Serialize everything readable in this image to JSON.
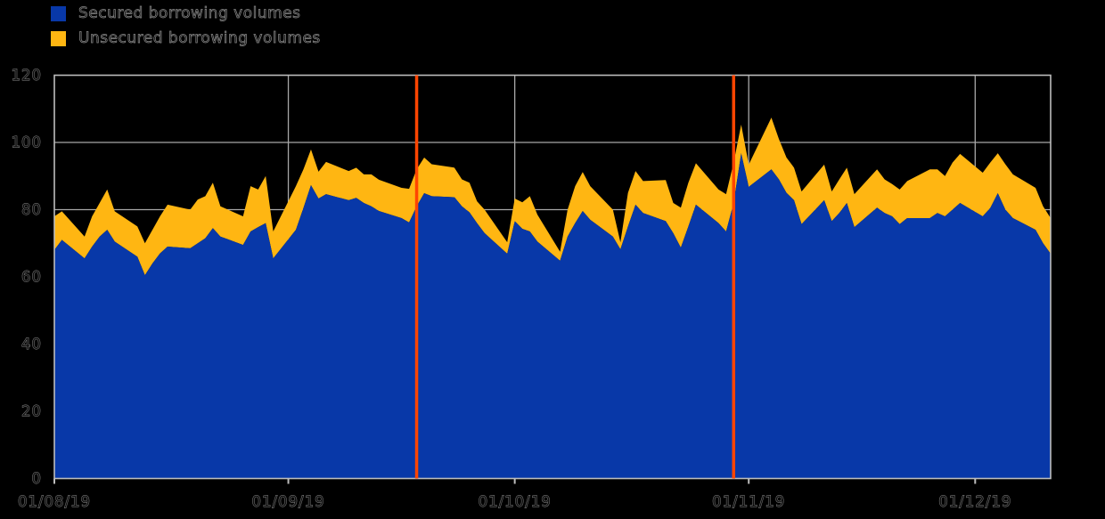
{
  "colors": {
    "background": "#000000",
    "grid": "#A8A8A8",
    "frame": "#BDBDBD",
    "event_line": "#FF4500",
    "secured_blue": "#0838A8",
    "unsecured_gold": "#FFB612",
    "text_fill": "#0E0E0E",
    "text_halo": "#8A8A8A"
  },
  "chart_data": {
    "type": "area",
    "stacked": true,
    "stacking": "incremental",
    "grid": true,
    "legend_position": "top-left",
    "ylim": [
      0,
      120
    ],
    "yticks": [
      {
        "value": 0,
        "label": "0"
      },
      {
        "value": 20,
        "label": "20"
      },
      {
        "value": 40,
        "label": "40"
      },
      {
        "value": 60,
        "label": "60"
      },
      {
        "value": 80,
        "label": "80"
      },
      {
        "value": 100,
        "label": "100"
      },
      {
        "value": 120,
        "label": "120"
      }
    ],
    "xticks": [
      {
        "date": "2019-08-01",
        "label": "01/08/19"
      },
      {
        "date": "2019-09-01",
        "label": "01/09/19"
      },
      {
        "date": "2019-10-01",
        "label": "01/10/19"
      },
      {
        "date": "2019-11-01",
        "label": "01/11/19"
      },
      {
        "date": "2019-12-01",
        "label": "01/12/19"
      }
    ],
    "event_line_color": "#FF4500",
    "event_lines": [
      {
        "date": "2019-09-18"
      },
      {
        "date": "2019-10-30"
      }
    ],
    "x_dates": [
      "2019-08-01",
      "2019-08-02",
      "2019-08-05",
      "2019-08-06",
      "2019-08-07",
      "2019-08-08",
      "2019-08-09",
      "2019-08-12",
      "2019-08-13",
      "2019-08-14",
      "2019-08-15",
      "2019-08-16",
      "2019-08-19",
      "2019-08-20",
      "2019-08-21",
      "2019-08-22",
      "2019-08-23",
      "2019-08-26",
      "2019-08-27",
      "2019-08-28",
      "2019-08-29",
      "2019-08-30",
      "2019-09-02",
      "2019-09-03",
      "2019-09-04",
      "2019-09-05",
      "2019-09-06",
      "2019-09-09",
      "2019-09-10",
      "2019-09-11",
      "2019-09-12",
      "2019-09-13",
      "2019-09-16",
      "2019-09-17",
      "2019-09-18",
      "2019-09-19",
      "2019-09-20",
      "2019-09-23",
      "2019-09-24",
      "2019-09-25",
      "2019-09-26",
      "2019-09-27",
      "2019-09-30",
      "2019-10-01",
      "2019-10-02",
      "2019-10-03",
      "2019-10-04",
      "2019-10-07",
      "2019-10-08",
      "2019-10-09",
      "2019-10-10",
      "2019-10-11",
      "2019-10-14",
      "2019-10-15",
      "2019-10-16",
      "2019-10-17",
      "2019-10-18",
      "2019-10-21",
      "2019-10-22",
      "2019-10-23",
      "2019-10-24",
      "2019-10-25",
      "2019-10-28",
      "2019-10-29",
      "2019-10-30",
      "2019-10-31",
      "2019-11-01",
      "2019-11-04",
      "2019-11-05",
      "2019-11-06",
      "2019-11-07",
      "2019-11-08",
      "2019-11-11",
      "2019-11-12",
      "2019-11-13",
      "2019-11-14",
      "2019-11-15",
      "2019-11-18",
      "2019-11-19",
      "2019-11-20",
      "2019-11-21",
      "2019-11-22",
      "2019-11-25",
      "2019-11-26",
      "2019-11-27",
      "2019-11-28",
      "2019-11-29",
      "2019-12-02",
      "2019-12-03",
      "2019-12-04",
      "2019-12-05",
      "2019-12-06",
      "2019-12-09",
      "2019-12-10",
      "2019-12-11"
    ],
    "series": [
      {
        "name": "Secured borrowing volumes",
        "color": "#0838A8",
        "values": [
          68,
          71,
          65.5,
          69,
          72,
          74,
          70.5,
          66,
          60.5,
          64,
          67,
          69,
          68.5,
          70,
          71.5,
          74.5,
          72,
          69.5,
          73.5,
          74.8,
          76,
          65.5,
          74,
          80.5,
          87.3,
          83.3,
          84.6,
          82.8,
          83.5,
          82,
          81,
          79.6,
          77.5,
          76.2,
          81,
          84.9,
          84,
          83.7,
          81,
          79.2,
          76,
          73,
          66.9,
          76.6,
          74.3,
          73.5,
          70.5,
          64.8,
          72,
          76,
          79.6,
          77,
          72,
          68.2,
          75,
          81.5,
          79,
          76.6,
          73,
          68.7,
          75,
          81.5,
          76,
          73.5,
          82,
          96.8,
          86.8,
          92,
          89,
          85,
          82.8,
          75.7,
          82.8,
          76.6,
          79,
          82,
          74.8,
          80.6,
          79,
          78,
          75.7,
          77.5,
          77.5,
          79,
          78,
          80,
          82,
          78,
          80.5,
          84.9,
          80,
          77.5,
          74,
          70,
          66.9
        ]
      },
      {
        "name": "Unsecured borrowing volumes",
        "color": "#FFB612",
        "values": [
          10,
          8.5,
          6.5,
          9,
          10,
          12,
          9,
          9,
          9.5,
          10,
          11,
          12.5,
          11.5,
          13,
          12.5,
          13.5,
          9,
          8.5,
          13.5,
          11.2,
          14,
          8,
          13,
          11.5,
          10.6,
          8,
          9.6,
          8.7,
          9,
          8.5,
          9.5,
          9.3,
          9,
          10,
          11,
          10.6,
          9.5,
          8.8,
          8,
          8.8,
          6.5,
          7,
          3.4,
          6.7,
          7.9,
          10.5,
          8,
          2.7,
          8,
          11,
          11.6,
          10,
          8,
          2.1,
          10,
          10,
          9.5,
          12.2,
          9,
          11.9,
          13,
          12.3,
          10,
          11.1,
          12,
          8.5,
          6.6,
          15.4,
          12,
          10.5,
          9.7,
          9.7,
          10.6,
          8.8,
          10,
          10.5,
          9.8,
          11.4,
          10,
          9.6,
          10.3,
          11,
          14.5,
          13,
          12,
          14,
          14.6,
          13,
          13.5,
          11.9,
          13.5,
          13,
          12.5,
          11,
          10.6
        ]
      }
    ]
  }
}
